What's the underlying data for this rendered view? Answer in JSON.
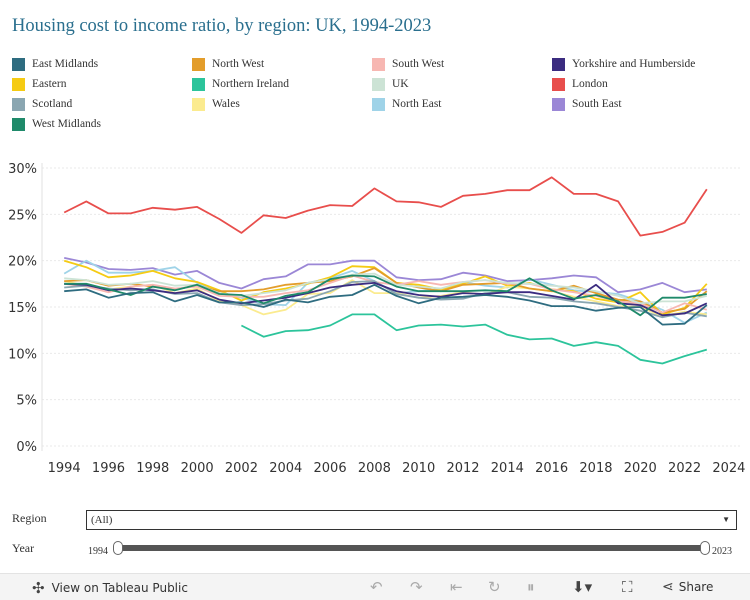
{
  "title": "Housing cost to income ratio, by region: UK, 1994-2023",
  "legend": [
    {
      "name": "East Midlands",
      "color": "#2e6c80"
    },
    {
      "name": "North West",
      "color": "#e39d2b"
    },
    {
      "name": "South West",
      "color": "#f7b7b2"
    },
    {
      "name": "Yorkshire and Humberside",
      "color": "#3b2c80"
    },
    {
      "name": "Eastern",
      "color": "#f5cb13"
    },
    {
      "name": "Northern Ireland",
      "color": "#2cc49b"
    },
    {
      "name": "UK",
      "color": "#cce3d5"
    },
    {
      "name": "London",
      "color": "#e84e4c"
    },
    {
      "name": "Scotland",
      "color": "#8aa6b1"
    },
    {
      "name": "Wales",
      "color": "#fbeb8f"
    },
    {
      "name": "North East",
      "color": "#9fd3e8"
    },
    {
      "name": "South East",
      "color": "#9b87d6"
    },
    {
      "name": "West Midlands",
      "color": "#1f8a6a"
    }
  ],
  "filters": {
    "region_label": "Region",
    "region_value": "(All)",
    "year_label": "Year",
    "year_min": "1994",
    "year_max": "2023"
  },
  "footer": {
    "view_label": "View on Tableau Public",
    "share_label": "Share"
  },
  "chart_data": {
    "type": "line",
    "title": "Housing cost to income ratio, by region: UK, 1994-2023",
    "xlabel": "",
    "ylabel": "",
    "xlim": [
      1993,
      2024.5
    ],
    "ylim": [
      0,
      30
    ],
    "x_ticks": [
      1994,
      1996,
      1998,
      2000,
      2002,
      2004,
      2006,
      2008,
      2010,
      2012,
      2014,
      2016,
      2018,
      2020,
      2022,
      2024
    ],
    "y_ticks": [
      0,
      5,
      10,
      15,
      20,
      25,
      30
    ],
    "y_tick_labels": [
      "0%",
      "5%",
      "10%",
      "15%",
      "20%",
      "25%",
      "30%"
    ],
    "x": [
      1994,
      1995,
      1996,
      1997,
      1998,
      1999,
      2000,
      2001,
      2002,
      2003,
      2004,
      2005,
      2006,
      2007,
      2008,
      2009,
      2010,
      2011,
      2012,
      2013,
      2014,
      2015,
      2016,
      2017,
      2018,
      2019,
      2020,
      2021,
      2022,
      2023
    ],
    "series": [
      {
        "name": "London",
        "color": "#e84e4c",
        "values": [
          25.2,
          26.4,
          25.1,
          25.1,
          25.7,
          25.5,
          25.8,
          24.5,
          23.0,
          24.9,
          24.6,
          25.4,
          26.0,
          25.9,
          27.8,
          26.4,
          26.3,
          25.8,
          27.0,
          27.2,
          27.6,
          27.6,
          29.0,
          27.2,
          27.2,
          26.4,
          22.7,
          23.1,
          24.1,
          27.7
        ]
      },
      {
        "name": "South East",
        "color": "#9b87d6",
        "values": [
          20.3,
          19.8,
          19.1,
          19.0,
          19.2,
          18.5,
          18.9,
          17.6,
          17.0,
          18.0,
          18.3,
          19.6,
          19.6,
          20.0,
          20.0,
          18.2,
          17.9,
          18.0,
          18.7,
          18.4,
          17.8,
          17.9,
          18.1,
          18.4,
          18.2,
          16.6,
          16.9,
          17.6,
          16.6,
          16.9
        ]
      },
      {
        "name": "North East",
        "color": "#9fd3e8",
        "values": [
          18.6,
          20.0,
          18.7,
          18.7,
          18.9,
          19.3,
          17.6,
          16.5,
          16.0,
          15.3,
          15.2,
          17.6,
          18.1,
          18.9,
          17.8,
          16.5,
          16.7,
          16.9,
          17.7,
          17.3,
          17.1,
          18.0,
          17.4,
          16.8,
          16.6,
          16.4,
          15.6,
          14.7,
          13.3,
          14.4
        ]
      },
      {
        "name": "Eastern",
        "color": "#f5cb13",
        "values": [
          20.0,
          19.3,
          18.2,
          18.4,
          18.9,
          18.1,
          17.7,
          16.8,
          15.7,
          16.6,
          17.0,
          17.5,
          18.2,
          19.4,
          19.3,
          17.6,
          17.4,
          16.9,
          17.5,
          18.3,
          17.3,
          17.6,
          16.9,
          16.7,
          15.9,
          15.5,
          16.6,
          14.2,
          14.9,
          17.5
        ]
      },
      {
        "name": "Wales",
        "color": "#fbeb8f",
        "values": [
          17.8,
          17.3,
          16.9,
          17.2,
          17.4,
          16.5,
          17.0,
          15.6,
          15.2,
          14.2,
          14.7,
          16.4,
          16.5,
          17.9,
          16.5,
          16.5,
          16.0,
          16.2,
          16.6,
          16.3,
          17.2,
          17.0,
          16.7,
          16.1,
          15.6,
          15.1,
          15.0,
          14.0,
          14.5,
          14.2
        ]
      },
      {
        "name": "North West",
        "color": "#e39d2b",
        "values": [
          17.8,
          17.9,
          17.3,
          17.5,
          17.2,
          16.9,
          17.3,
          16.7,
          16.7,
          16.9,
          17.4,
          17.6,
          17.8,
          18.3,
          19.2,
          17.6,
          17.1,
          16.7,
          17.4,
          17.5,
          17.6,
          17.0,
          16.7,
          17.3,
          16.5,
          15.8,
          15.6,
          14.4,
          14.8,
          16.7
        ]
      },
      {
        "name": "South West",
        "color": "#f7b7b2",
        "values": [
          17.5,
          17.2,
          16.6,
          17.2,
          17.4,
          17.0,
          17.2,
          16.2,
          16.1,
          16.1,
          16.5,
          16.8,
          17.6,
          18.4,
          17.7,
          17.4,
          17.8,
          17.4,
          17.7,
          17.9,
          17.5,
          17.5,
          16.9,
          16.6,
          16.2,
          15.6,
          15.4,
          14.4,
          15.4,
          14.7
        ]
      },
      {
        "name": "UK",
        "color": "#cce3d5",
        "values": [
          18.1,
          17.9,
          17.4,
          17.5,
          17.8,
          17.3,
          17.4,
          16.5,
          16.2,
          16.5,
          16.8,
          17.6,
          18.0,
          18.5,
          18.6,
          17.4,
          17.2,
          17.0,
          17.7,
          17.9,
          17.6,
          17.5,
          17.3,
          17.1,
          16.7,
          16.2,
          15.4,
          15.6,
          15.6,
          16.2
        ]
      },
      {
        "name": "Scotland",
        "color": "#8aa6b1",
        "values": [
          17.1,
          17.3,
          17.0,
          16.8,
          16.9,
          16.4,
          16.5,
          15.5,
          15.2,
          15.3,
          15.7,
          15.9,
          16.7,
          17.7,
          17.8,
          16.4,
          16.0,
          15.8,
          15.9,
          16.5,
          16.6,
          16.1,
          16.0,
          15.6,
          15.4,
          15.0,
          14.6,
          13.9,
          14.4,
          14.0
        ]
      },
      {
        "name": "Yorkshire and Humberside",
        "color": "#3b2c80",
        "values": [
          17.5,
          17.4,
          16.8,
          17.0,
          16.8,
          16.5,
          16.8,
          15.8,
          15.4,
          15.7,
          16.0,
          16.5,
          17.1,
          17.4,
          17.6,
          16.7,
          16.3,
          16.1,
          16.5,
          16.4,
          16.6,
          16.6,
          16.2,
          15.8,
          17.4,
          15.4,
          15.2,
          14.1,
          14.3,
          15.4
        ]
      },
      {
        "name": "West Midlands",
        "color": "#1f8a6a",
        "values": [
          17.5,
          17.5,
          16.9,
          16.3,
          17.2,
          16.8,
          17.4,
          16.4,
          16.3,
          15.4,
          16.2,
          16.6,
          18.0,
          18.4,
          18.3,
          17.2,
          16.7,
          16.7,
          16.7,
          16.8,
          16.7,
          18.1,
          16.8,
          15.9,
          16.3,
          15.6,
          14.1,
          16.0,
          16.0,
          16.4
        ]
      },
      {
        "name": "East Midlands",
        "color": "#2e6c80",
        "values": [
          16.7,
          16.9,
          16.0,
          16.5,
          16.6,
          15.6,
          16.3,
          15.5,
          15.5,
          15.0,
          15.8,
          15.5,
          16.1,
          16.3,
          17.4,
          16.2,
          15.4,
          16.0,
          16.1,
          16.3,
          16.1,
          15.7,
          15.1,
          15.1,
          14.6,
          14.9,
          15.0,
          13.1,
          13.2,
          15.2
        ]
      },
      {
        "name": "Northern Ireland",
        "color": "#2cc49b",
        "values": [
          null,
          null,
          null,
          null,
          null,
          null,
          null,
          null,
          13.0,
          11.8,
          12.4,
          12.5,
          13.0,
          14.2,
          14.2,
          12.5,
          13.0,
          13.1,
          12.9,
          13.1,
          12.0,
          11.5,
          11.6,
          10.8,
          11.2,
          10.8,
          9.3,
          8.9,
          9.7,
          10.4
        ]
      }
    ]
  }
}
